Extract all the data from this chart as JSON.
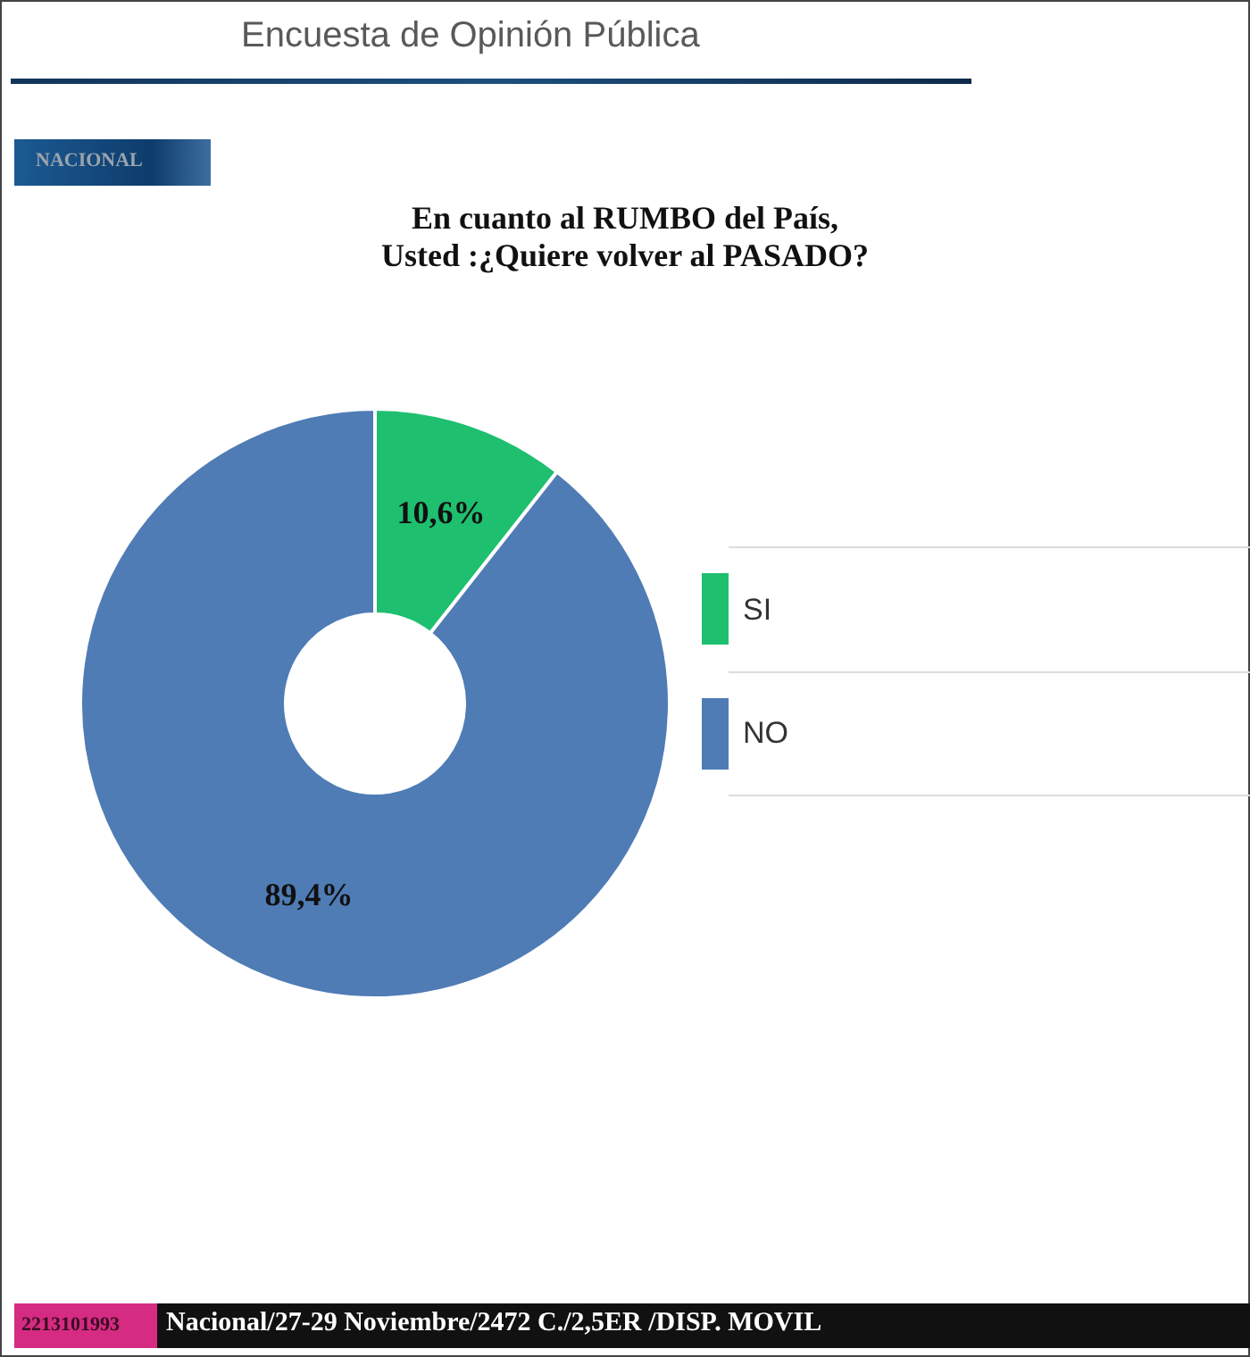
{
  "chart_data": {
    "type": "donut",
    "title": "En cuanto al RUMBO del País,\nUsted :¿Quiere volver al PASADO?",
    "categories": [
      "SI",
      "NO"
    ],
    "values": [
      10.6,
      89.4
    ],
    "colors": [
      "#1fbf70",
      "#4f7cb5"
    ],
    "value_labels": [
      "10,6%",
      "89,4%"
    ],
    "legend": "right",
    "annotations": [
      "Encuesta de Opinión Pública",
      "NACIONAL",
      "2213101993",
      "Nacional/27-29 Noviembre/2472 C./2,5ER /DISP. MOVIL"
    ]
  }
}
